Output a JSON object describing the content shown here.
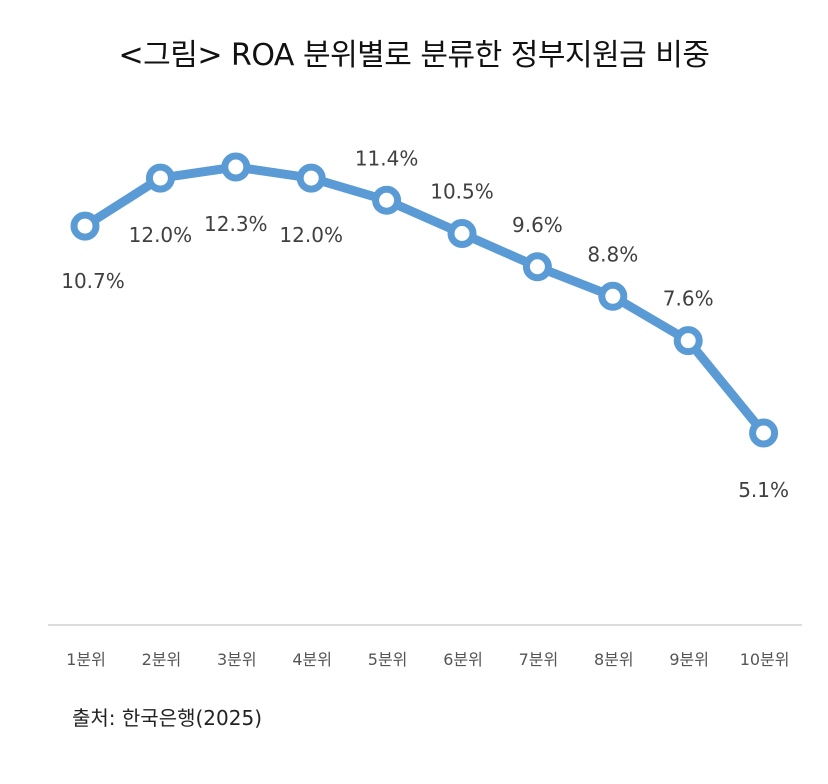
{
  "title": "<그림> ROA 분위별로 분류한 정부지원금 비중",
  "source": "출처: 한국은행(2025)",
  "chart_data": {
    "type": "line",
    "categories": [
      "1분위",
      "2분위",
      "3분위",
      "4분위",
      "5분위",
      "6분위",
      "7분위",
      "8분위",
      "9분위",
      "10분위"
    ],
    "series": [
      {
        "values": [
          10.7,
          12.0,
          12.3,
          12.0,
          11.4,
          10.5,
          9.6,
          8.8,
          7.6,
          5.1
        ],
        "labels": [
          "10.7%",
          "12.0%",
          "12.3%",
          "12.0%",
          "11.4%",
          "10.5%",
          "9.6%",
          "8.8%",
          "7.6%",
          "5.1%"
        ],
        "color": "#5b9bd5"
      }
    ],
    "grid": false,
    "legend": "none"
  }
}
